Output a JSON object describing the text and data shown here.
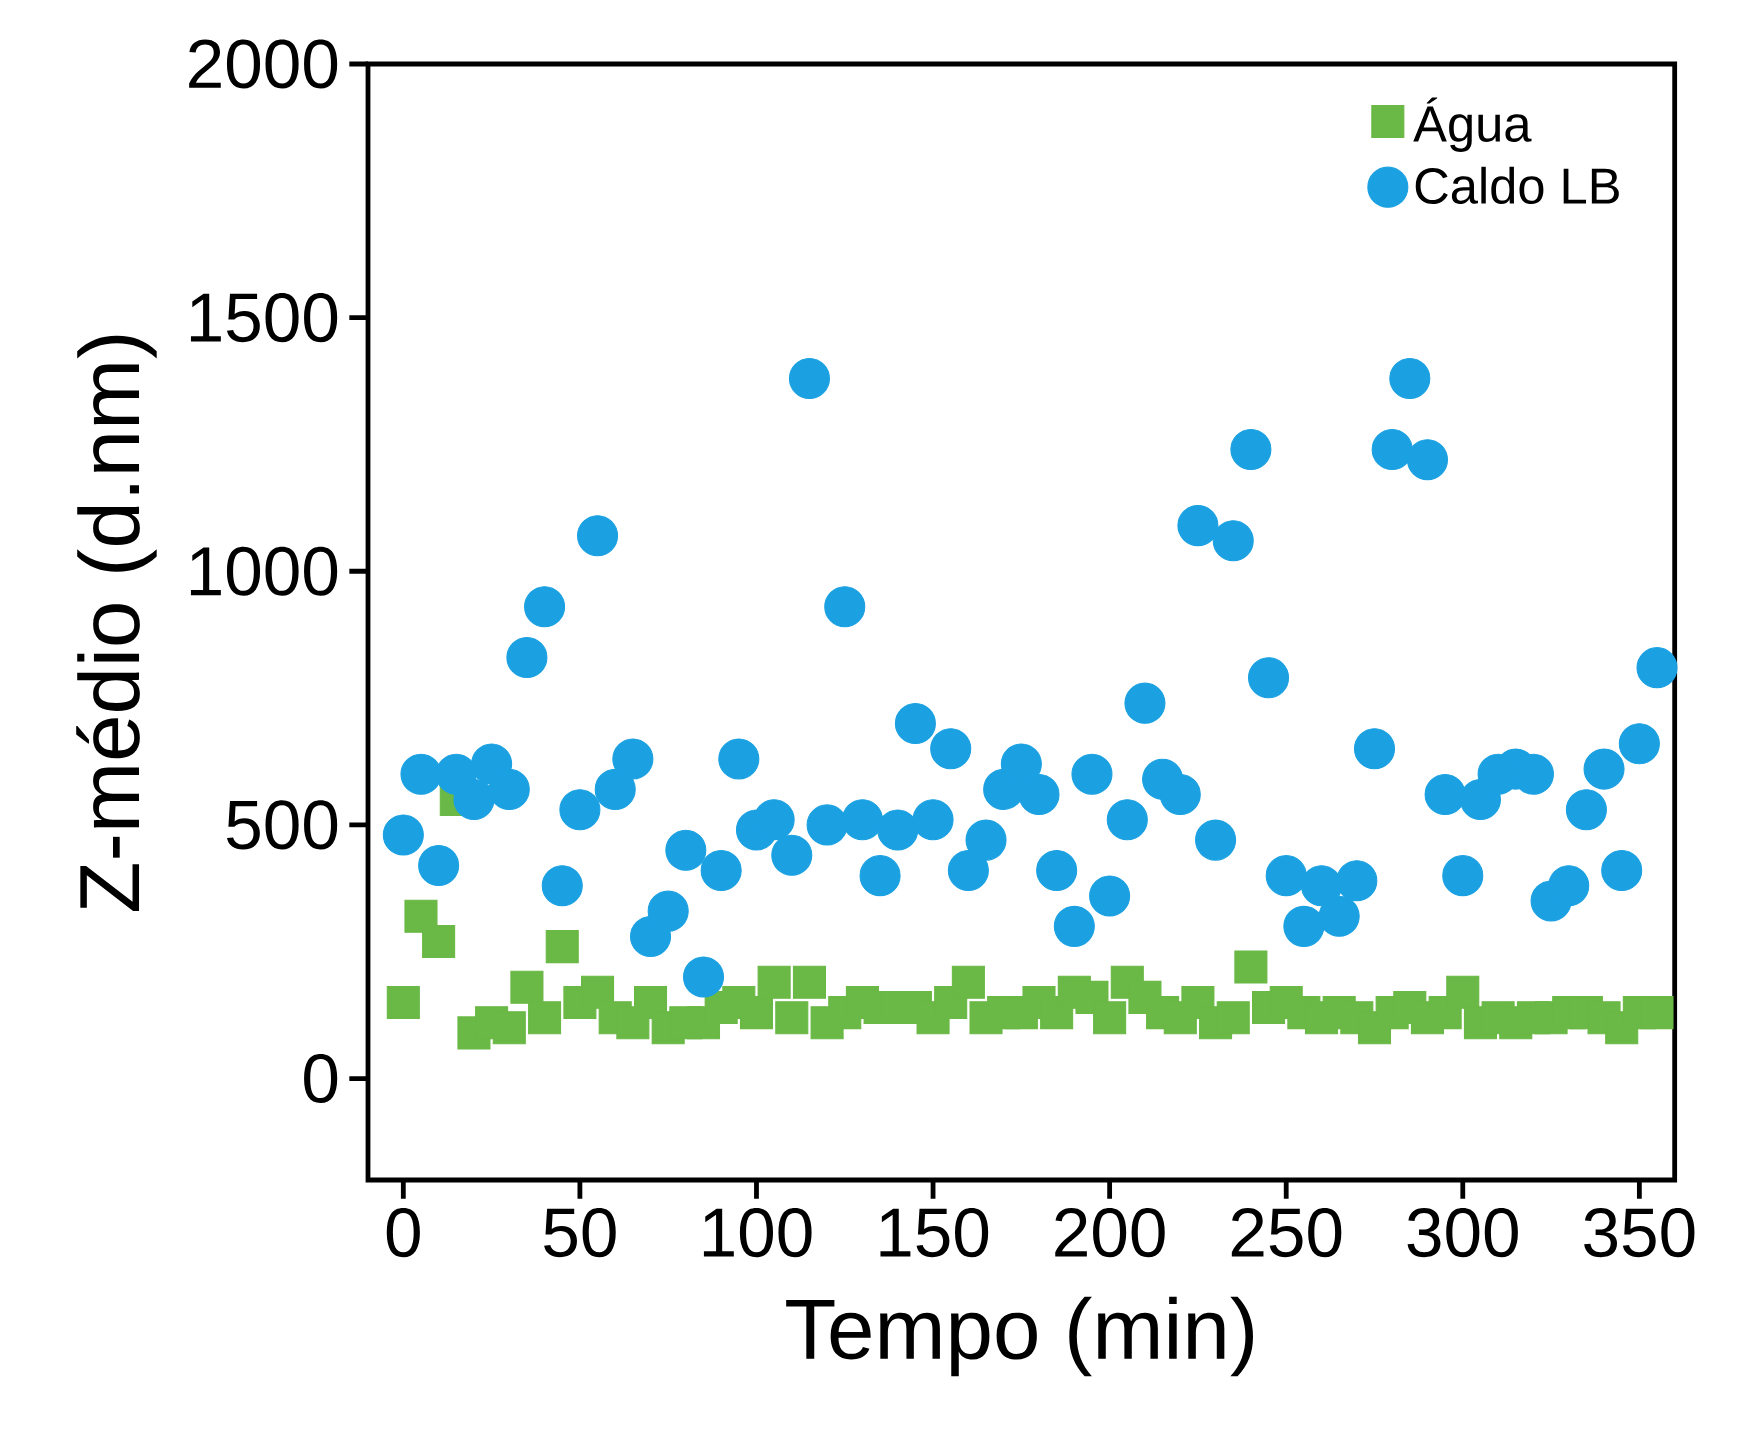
{
  "chart_data": {
    "type": "scatter",
    "xlabel": "Tempo (min)",
    "ylabel": "Z-médio (d.nm)",
    "x": [
      0,
      5,
      10,
      15,
      20,
      25,
      30,
      35,
      40,
      45,
      50,
      55,
      60,
      65,
      70,
      75,
      80,
      85,
      90,
      95,
      100,
      105,
      110,
      115,
      120,
      125,
      130,
      135,
      140,
      145,
      150,
      155,
      160,
      165,
      170,
      175,
      180,
      185,
      190,
      195,
      200,
      205,
      210,
      215,
      220,
      225,
      230,
      235,
      240,
      245,
      250,
      255,
      260,
      265,
      270,
      275,
      280,
      285,
      290,
      295,
      300,
      305,
      310,
      315,
      320,
      325,
      330,
      335,
      340,
      345,
      350,
      355
    ],
    "series": [
      {
        "name": "Água",
        "color": "#6ab845",
        "marker": "square",
        "values": [
          150,
          320,
          270,
          550,
          90,
          110,
          100,
          180,
          120,
          260,
          150,
          170,
          120,
          110,
          150,
          100,
          110,
          110,
          140,
          150,
          130,
          190,
          120,
          190,
          110,
          130,
          150,
          140,
          140,
          140,
          120,
          150,
          190,
          120,
          130,
          130,
          150,
          130,
          170,
          160,
          120,
          190,
          160,
          130,
          120,
          150,
          110,
          120,
          220,
          140,
          150,
          130,
          120,
          130,
          120,
          100,
          130,
          140,
          120,
          130,
          170,
          110,
          120,
          110,
          120,
          120,
          130,
          130,
          120,
          100,
          130,
          130
        ]
      },
      {
        "name": "Caldo LB",
        "color": "#1ba1e2",
        "marker": "circle",
        "values": [
          480,
          600,
          420,
          600,
          550,
          620,
          570,
          830,
          930,
          380,
          530,
          1070,
          570,
          630,
          280,
          330,
          450,
          200,
          410,
          630,
          490,
          510,
          440,
          1380,
          500,
          930,
          510,
          400,
          490,
          700,
          510,
          650,
          410,
          470,
          570,
          620,
          560,
          410,
          300,
          600,
          360,
          510,
          740,
          590,
          560,
          1090,
          470,
          1060,
          1240,
          790,
          400,
          300,
          380,
          320,
          390,
          650,
          1240,
          1380,
          1220,
          560,
          400,
          550,
          600,
          610,
          600,
          350,
          380,
          530,
          610,
          410,
          660,
          810
        ]
      }
    ],
    "xlim": [
      -10,
      360
    ],
    "ylim": [
      -200,
      2000
    ],
    "xticks": [
      0,
      50,
      100,
      150,
      200,
      250,
      300,
      350
    ],
    "yticks": [
      0,
      500,
      1000,
      1500,
      2000
    ],
    "legend": "top right"
  }
}
